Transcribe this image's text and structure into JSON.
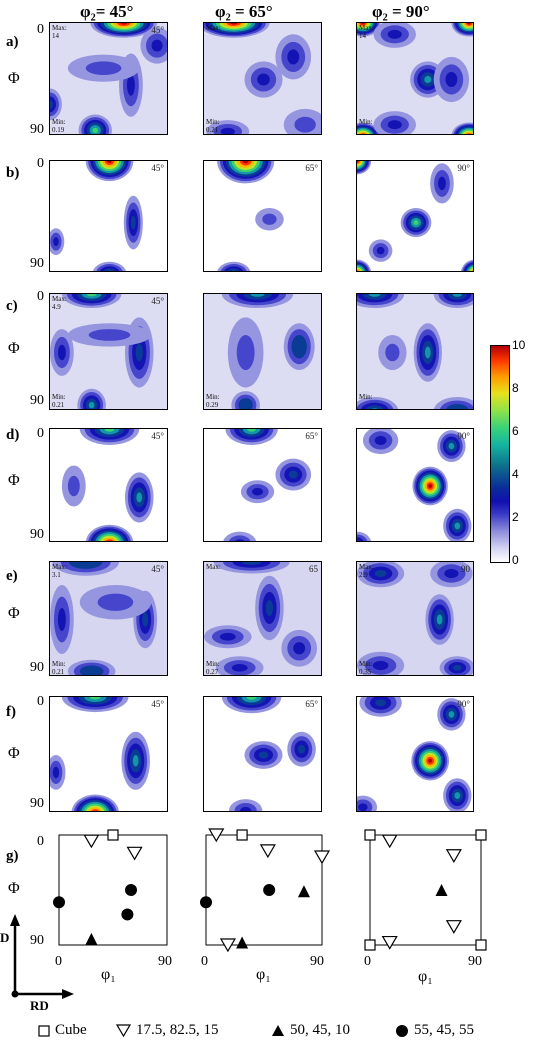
{
  "columns": [
    "φ₂= 45°",
    "φ₂ = 65°",
    "φ₂ = 90°"
  ],
  "rows": [
    "a)",
    "b)",
    "c)",
    "d)",
    "e)",
    "f)",
    "g)"
  ],
  "phi_label": "Φ",
  "axis_ticks": {
    "zero": "0",
    "ninety": "90"
  },
  "phi1_label": "φ₁",
  "panel_text": {
    "a_45_max_label": "Max:",
    "a_45_max": "14",
    "a_45_min_label": "Min:",
    "a_45_min": "0.19",
    "a_45_angle": "45°",
    "a_65_max_label": "Max:",
    "a_65_min_label": "Min:",
    "a_65_min": "0.21",
    "a_90_max_label": "Max:",
    "a_90_max": "14",
    "a_90_min_label": "Min:",
    "b_45_angle": "45°",
    "b_65_angle": "65°",
    "b_90_angle": "90°",
    "c_45_max_label": "Max:",
    "c_45_max": "4.9",
    "c_45_min_label": "Min:",
    "c_45_min": "0.21",
    "c_45_angle": "45°",
    "c_65_min_label": "Min:",
    "c_65_min": "0.29",
    "c_90_min_label": "Min:",
    "d_45_angle": "45°",
    "d_65_angle": "65°",
    "d_90_angle": "90°",
    "e_45_max_label": "Max:",
    "e_45_max": "3.1",
    "e_45_min_label": "Min:",
    "e_45_min": "0.21",
    "e_45_angle": "45°",
    "e_65_max_label": "Max:",
    "e_65_min_label": "Min:",
    "e_65_min": "0.27",
    "e_65_angle": "65",
    "e_90_max_label": "Max:",
    "e_90_max": "2.9",
    "e_90_min_label": "Min:",
    "e_90_min": "0.35",
    "e_90_angle": "90",
    "f_45_angle": "45°",
    "f_65_angle": "65°",
    "f_90_angle": "90°"
  },
  "colorbar": {
    "ticks": [
      "10",
      "8",
      "6",
      "4",
      "2",
      "0"
    ]
  },
  "axes_indicator": {
    "vertical": "D",
    "horizontal": "RD"
  },
  "legend": [
    {
      "symbol": "open-square",
      "label": "Cube"
    },
    {
      "symbol": "open-triangle-down",
      "label": "17.5, 82.5, 15"
    },
    {
      "symbol": "filled-triangle-up",
      "label": "50, 45, 10"
    },
    {
      "symbol": "filled-circle",
      "label": "55, 45, 55"
    }
  ],
  "ideal_orientations": {
    "phi2_45": [
      {
        "type": "open-square",
        "phi1": 45,
        "Phi": 0
      },
      {
        "type": "open-triangle-down",
        "phi1": 27,
        "Phi": 5
      },
      {
        "type": "open-triangle-down",
        "phi1": 63,
        "Phi": 15
      },
      {
        "type": "filled-circle",
        "phi1": 0,
        "Phi": 55
      },
      {
        "type": "filled-circle",
        "phi1": 60,
        "Phi": 45
      },
      {
        "type": "filled-circle",
        "phi1": 57,
        "Phi": 65
      },
      {
        "type": "filled-triangle-up",
        "phi1": 27,
        "Phi": 85
      }
    ],
    "phi2_65": [
      {
        "type": "open-triangle-down",
        "phi1": 8,
        "Phi": 0
      },
      {
        "type": "open-square",
        "phi1": 28,
        "Phi": 0
      },
      {
        "type": "open-triangle-down",
        "phi1": 48,
        "Phi": 13
      },
      {
        "type": "open-triangle-down",
        "phi1": 90,
        "Phi": 18
      },
      {
        "type": "filled-circle",
        "phi1": 0,
        "Phi": 55
      },
      {
        "type": "filled-circle",
        "phi1": 49,
        "Phi": 45
      },
      {
        "type": "filled-triangle-up",
        "phi1": 76,
        "Phi": 46
      },
      {
        "type": "open-triangle-down",
        "phi1": 17,
        "Phi": 90
      },
      {
        "type": "filled-triangle-up",
        "phi1": 28,
        "Phi": 88
      }
    ],
    "phi2_90": [
      {
        "type": "open-square",
        "phi1": 0,
        "Phi": 0
      },
      {
        "type": "open-triangle-down",
        "phi1": 16,
        "Phi": 5
      },
      {
        "type": "open-square",
        "phi1": 90,
        "Phi": 0
      },
      {
        "type": "open-triangle-down",
        "phi1": 68,
        "Phi": 17
      },
      {
        "type": "filled-triangle-up",
        "phi1": 58,
        "Phi": 45
      },
      {
        "type": "open-triangle-down",
        "phi1": 68,
        "Phi": 75
      },
      {
        "type": "open-square",
        "phi1": 0,
        "Phi": 90
      },
      {
        "type": "open-triangle-down",
        "phi1": 16,
        "Phi": 88
      },
      {
        "type": "open-square",
        "phi1": 90,
        "Phi": 90
      }
    ]
  }
}
